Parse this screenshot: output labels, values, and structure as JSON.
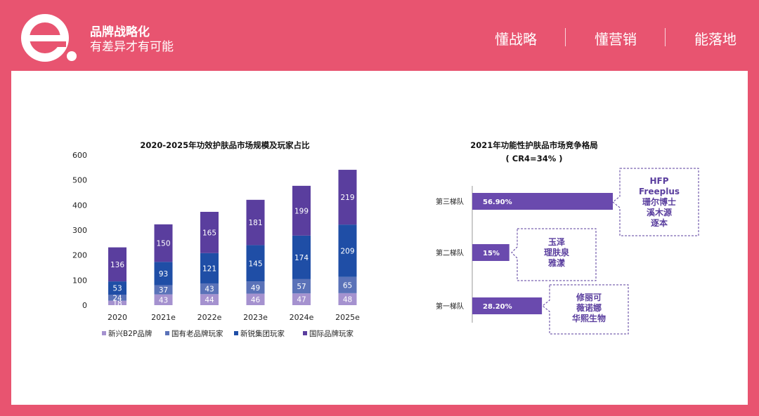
{
  "header": {
    "brand_title": "品牌战略化",
    "brand_subtitle": "有差异才有可能",
    "nav": [
      "懂战略",
      "懂营销",
      "能落地"
    ],
    "colors": {
      "background": "#e85470",
      "panel": "#ffffff"
    }
  },
  "chart_data": [
    {
      "type": "bar",
      "stacked": true,
      "title": "2020-2025年功效护肤品市场规模及玩家占比",
      "categories": [
        "2020",
        "2021e",
        "2022e",
        "2023e",
        "2024e",
        "2025e"
      ],
      "ylim": [
        0,
        600
      ],
      "yticks": [
        0,
        100,
        200,
        300,
        400,
        500,
        600
      ],
      "legend_position": "bottom",
      "grid": false,
      "series": [
        {
          "name": "新兴B2P品牌",
          "color": "#a592cf",
          "values": [
            18,
            43,
            44,
            46,
            47,
            48
          ]
        },
        {
          "name": "国有老品牌玩家",
          "color": "#5a72b8",
          "values": [
            24,
            37,
            43,
            49,
            57,
            65
          ]
        },
        {
          "name": "新锐集团玩家",
          "color": "#1f4ea6",
          "values": [
            53,
            93,
            121,
            145,
            174,
            209
          ]
        },
        {
          "name": "国际品牌玩家",
          "color": "#5a3e9e",
          "values": [
            136,
            150,
            165,
            181,
            199,
            219
          ]
        }
      ]
    },
    {
      "type": "bar",
      "orientation": "horizontal",
      "title": "2021年功能性护肤品市场竞争格局",
      "subtitle": "( CR4=34% )",
      "bar_color": "#6a4aae",
      "categories": [
        "第三梯队",
        "第二梯队",
        "第一梯队"
      ],
      "values": [
        56.9,
        15,
        28.2
      ],
      "value_labels": [
        "56.90%",
        "15%",
        "28.20%"
      ],
      "xlim": [
        0,
        56.9
      ],
      "callouts": [
        [
          "HFP",
          "Freeplus",
          "珊尔博士",
          "溪木源",
          "逐本"
        ],
        [
          "玉泽",
          "理肤泉",
          "雅漾"
        ],
        [
          "修丽可",
          "薇诺娜",
          "华熙生物"
        ]
      ]
    }
  ]
}
